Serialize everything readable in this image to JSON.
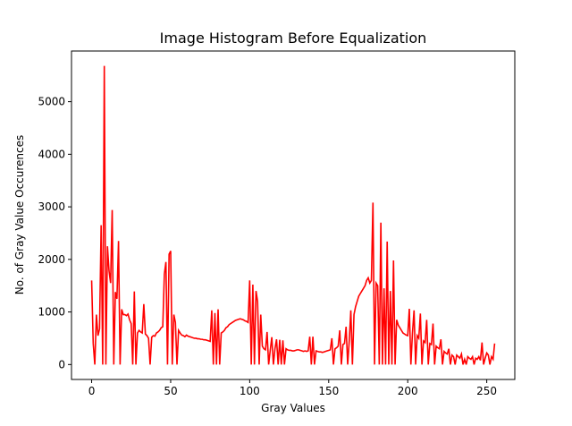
{
  "chart_data": {
    "type": "line",
    "title": "Image Histogram Before Equalization",
    "x_label": "Gray Values",
    "y_label": "No. of Gray Value Occurences",
    "x": [
      0,
      1,
      2,
      3,
      4,
      5,
      6,
      7,
      8,
      9,
      10,
      11,
      12,
      13,
      14,
      15,
      16,
      17,
      18,
      19,
      20,
      21,
      22,
      23,
      24,
      25,
      26,
      27,
      28,
      29,
      30,
      31,
      32,
      33,
      34,
      35,
      36,
      37,
      38,
      39,
      40,
      41,
      42,
      43,
      44,
      45,
      46,
      47,
      48,
      49,
      50,
      51,
      52,
      53,
      54,
      55,
      56,
      57,
      58,
      59,
      60,
      61,
      62,
      63,
      64,
      65,
      66,
      67,
      68,
      69,
      70,
      71,
      72,
      73,
      74,
      75,
      76,
      77,
      78,
      79,
      80,
      81,
      82,
      83,
      84,
      85,
      86,
      87,
      88,
      89,
      90,
      91,
      92,
      93,
      94,
      95,
      96,
      97,
      98,
      99,
      100,
      101,
      102,
      103,
      104,
      105,
      106,
      107,
      108,
      109,
      110,
      111,
      112,
      113,
      114,
      115,
      116,
      117,
      118,
      119,
      120,
      121,
      122,
      123,
      124,
      125,
      126,
      127,
      128,
      129,
      130,
      131,
      132,
      133,
      134,
      135,
      136,
      137,
      138,
      139,
      140,
      141,
      142,
      143,
      144,
      145,
      146,
      147,
      148,
      149,
      150,
      151,
      152,
      153,
      154,
      155,
      156,
      157,
      158,
      159,
      160,
      161,
      162,
      163,
      164,
      165,
      166,
      167,
      168,
      169,
      170,
      171,
      172,
      173,
      174,
      175,
      176,
      177,
      178,
      179,
      180,
      181,
      182,
      183,
      184,
      185,
      186,
      187,
      188,
      189,
      190,
      191,
      192,
      193,
      194,
      195,
      196,
      197,
      198,
      199,
      200,
      201,
      202,
      203,
      204,
      205,
      206,
      207,
      208,
      209,
      210,
      211,
      212,
      213,
      214,
      215,
      216,
      217,
      218,
      219,
      220,
      221,
      222,
      223,
      224,
      225,
      226,
      227,
      228,
      229,
      230,
      231,
      232,
      233,
      234,
      235,
      236,
      237,
      238,
      239,
      240,
      241,
      242,
      243,
      244,
      245,
      246,
      247,
      248,
      249,
      250,
      251,
      252,
      253,
      254,
      255
    ],
    "series": [
      {
        "color": "#ff0000",
        "values": [
          1600,
          400,
          0,
          950,
          550,
          680,
          2650,
          0,
          5680,
          0,
          2250,
          1780,
          1550,
          2940,
          0,
          1380,
          1250,
          2350,
          0,
          1050,
          950,
          950,
          930,
          960,
          850,
          780,
          0,
          1390,
          0,
          600,
          650,
          620,
          600,
          1150,
          580,
          550,
          500,
          0,
          520,
          550,
          540,
          600,
          620,
          650,
          700,
          720,
          1720,
          1950,
          0,
          2100,
          2160,
          0,
          950,
          800,
          0,
          650,
          600,
          560,
          550,
          530,
          560,
          540,
          530,
          520,
          510,
          500,
          500,
          490,
          490,
          480,
          480,
          470,
          470,
          460,
          450,
          440,
          1030,
          0,
          980,
          0,
          1050,
          0,
          600,
          620,
          650,
          700,
          720,
          760,
          780,
          800,
          820,
          840,
          850,
          860,
          870,
          860,
          850,
          830,
          820,
          800,
          1600,
          0,
          1520,
          0,
          1400,
          1200,
          0,
          950,
          350,
          300,
          280,
          620,
          0,
          270,
          520,
          0,
          300,
          480,
          0,
          470,
          0,
          460,
          0,
          300,
          280,
          270,
          270,
          260,
          260,
          270,
          280,
          280,
          270,
          260,
          250,
          260,
          250,
          260,
          530,
          0,
          530,
          0,
          260,
          250,
          240,
          240,
          230,
          240,
          250,
          260,
          270,
          280,
          500,
          0,
          300,
          320,
          350,
          650,
          0,
          380,
          400,
          720,
          0,
          450,
          1030,
          0,
          950,
          1100,
          1200,
          1300,
          1350,
          1400,
          1450,
          1500,
          1600,
          1650,
          1550,
          1600,
          3080,
          0,
          1550,
          1500,
          0,
          2700,
          0,
          1450,
          0,
          2340,
          0,
          1400,
          0,
          1980,
          0,
          850,
          750,
          700,
          650,
          600,
          580,
          560,
          550,
          1060,
          0,
          600,
          1030,
          0,
          550,
          500,
          970,
          0,
          450,
          420,
          850,
          0,
          400,
          380,
          780,
          0,
          350,
          320,
          300,
          480,
          0,
          250,
          220,
          200,
          300,
          0,
          180,
          150,
          0,
          180,
          150,
          120,
          200,
          0,
          100,
          0,
          150,
          120,
          100,
          150,
          0,
          120,
          100,
          150,
          80,
          420,
          0,
          120,
          220,
          180,
          0,
          150,
          100,
          400
        ]
      }
    ],
    "xlim": [
      -12.75,
      267.75
    ],
    "xticks": [
      0,
      50,
      100,
      150,
      200,
      250
    ],
    "ylim": [
      -284,
      5964
    ],
    "yticks": [
      0,
      1000,
      2000,
      3000,
      4000,
      5000
    ]
  }
}
